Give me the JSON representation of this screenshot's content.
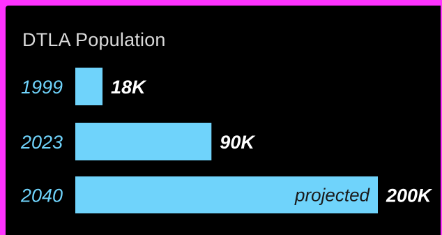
{
  "chart_data": {
    "type": "bar",
    "orientation": "horizontal",
    "title": "DTLA Population",
    "categories": [
      "1999",
      "2023",
      "2040"
    ],
    "values": [
      18000,
      90000,
      200000
    ],
    "value_labels": [
      "18K",
      "90K",
      "200K"
    ],
    "annotations": [
      {
        "category": "2040",
        "text": "projected"
      }
    ],
    "grid": false,
    "legend": "none"
  },
  "colors": {
    "background": "#000000",
    "frame": "#ff33ff",
    "bar": "#6fd3fb",
    "category_label": "#6fd3fb",
    "value_label": "#ffffff",
    "title": "#d9d9d9",
    "annotation": "#1a1a1a"
  }
}
